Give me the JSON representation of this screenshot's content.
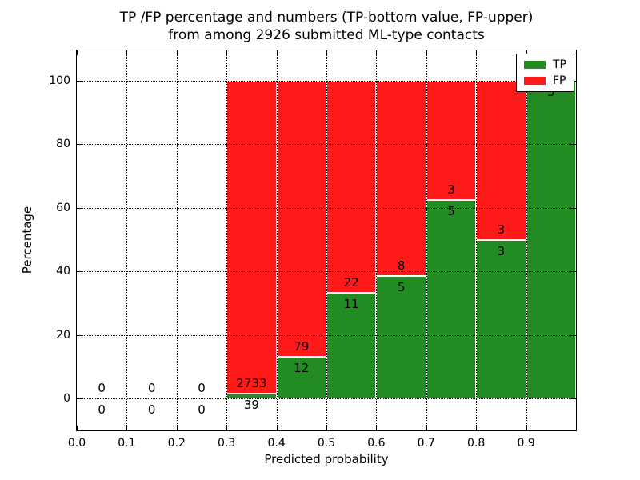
{
  "figure": {
    "title_line1": "TP /FP percentage and numbers (TP-bottom value, FP-upper)",
    "title_line2": "from among 2926 submitted ML-type contacts"
  },
  "axes": {
    "xlabel": "Predicted probability",
    "ylabel": "Percentage",
    "xtick_labels": [
      "0.0",
      "0.1",
      "0.2",
      "0.3",
      "0.4",
      "0.5",
      "0.6",
      "0.7",
      "0.8",
      "0.9"
    ],
    "ytick_labels": [
      "0",
      "20",
      "40",
      "60",
      "80",
      "100"
    ],
    "grid_style": "dotted",
    "grid_color": "#000000",
    "background": "#ffffff"
  },
  "legend": {
    "position": "upper-right",
    "items": [
      {
        "label": "TP",
        "color": "#228b22"
      },
      {
        "label": "FP",
        "color": "#ff1a1a"
      }
    ]
  },
  "chart_data": {
    "type": "bar",
    "stacked": true,
    "orientation": "vertical",
    "title": "TP /FP percentage and numbers (TP-bottom value, FP-upper) from among 2926 submitted ML-type contacts",
    "xlabel": "Predicted probability",
    "ylabel": "Percentage",
    "xlim": [
      0.0,
      1.0
    ],
    "ylim": [
      -10,
      110
    ],
    "grid": true,
    "legend_position": "upper-right",
    "total_contacts": 2926,
    "bin_width": 0.1,
    "series": [
      {
        "name": "TP",
        "color": "#228b22",
        "stack_position": "bottom"
      },
      {
        "name": "FP",
        "color": "#ff1a1a",
        "stack_position": "top"
      }
    ],
    "bins": [
      {
        "x_range": [
          0.0,
          0.1
        ],
        "tp_count": 0,
        "fp_count": 0,
        "tp_pct": 0,
        "fp_pct": 0,
        "tp_label": "0",
        "fp_label": "0"
      },
      {
        "x_range": [
          0.1,
          0.2
        ],
        "tp_count": 0,
        "fp_count": 0,
        "tp_pct": 0,
        "fp_pct": 0,
        "tp_label": "0",
        "fp_label": "0"
      },
      {
        "x_range": [
          0.2,
          0.3
        ],
        "tp_count": 0,
        "fp_count": 0,
        "tp_pct": 0,
        "fp_pct": 0,
        "tp_label": "0",
        "fp_label": "0"
      },
      {
        "x_range": [
          0.3,
          0.4
        ],
        "tp_count": 39,
        "fp_count": 2733,
        "tp_pct": 1.41,
        "fp_pct": 98.59,
        "tp_label": "39",
        "fp_label": "2733"
      },
      {
        "x_range": [
          0.4,
          0.5
        ],
        "tp_count": 12,
        "fp_count": 79,
        "tp_pct": 13.19,
        "fp_pct": 86.81,
        "tp_label": "12",
        "fp_label": "79"
      },
      {
        "x_range": [
          0.5,
          0.6
        ],
        "tp_count": 11,
        "fp_count": 22,
        "tp_pct": 33.33,
        "fp_pct": 66.67,
        "tp_label": "11",
        "fp_label": "22"
      },
      {
        "x_range": [
          0.6,
          0.7
        ],
        "tp_count": 5,
        "fp_count": 8,
        "tp_pct": 38.46,
        "fp_pct": 61.54,
        "tp_label": "5",
        "fp_label": "8"
      },
      {
        "x_range": [
          0.7,
          0.8
        ],
        "tp_count": 5,
        "fp_count": 3,
        "tp_pct": 62.5,
        "fp_pct": 37.5,
        "tp_label": "5",
        "fp_label": "3"
      },
      {
        "x_range": [
          0.8,
          0.9
        ],
        "tp_count": 3,
        "fp_count": 3,
        "tp_pct": 50.0,
        "fp_pct": 50.0,
        "tp_label": "3",
        "fp_label": "3"
      },
      {
        "x_range": [
          0.9,
          1.0
        ],
        "tp_count": 3,
        "fp_count": 0,
        "tp_pct": 100.0,
        "fp_pct": 0.0,
        "tp_label": "3",
        "fp_label": null
      }
    ]
  }
}
